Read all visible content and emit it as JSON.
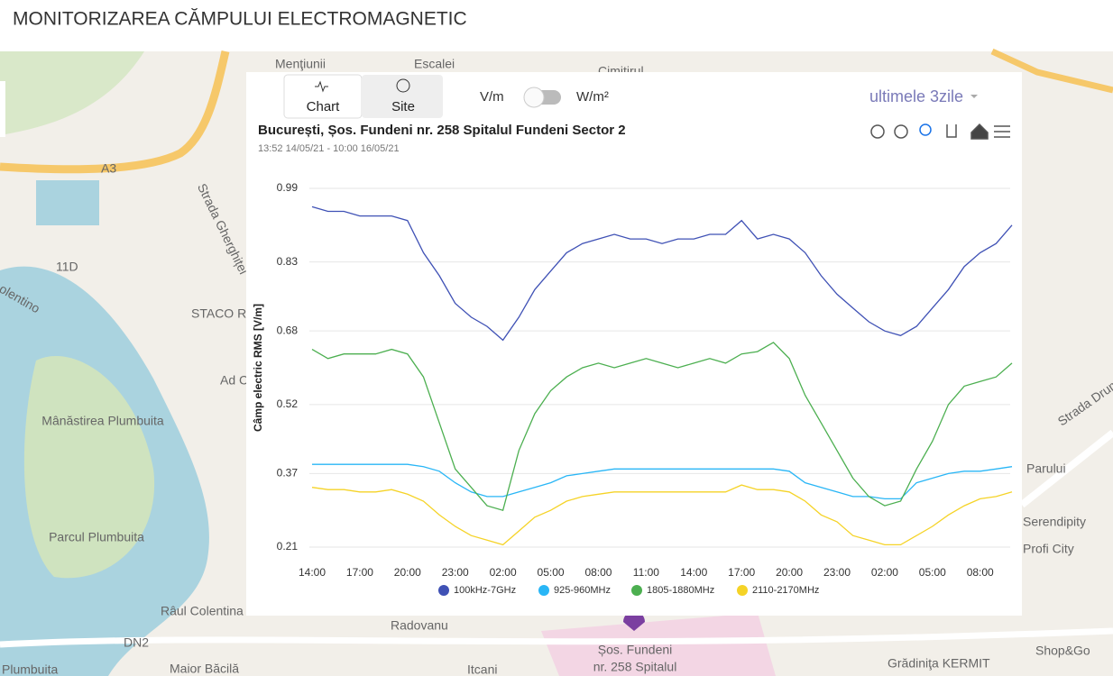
{
  "header": {
    "title": "MONITORIZAREA CĂMPULUI ELECTROMAGNETIC"
  },
  "tabs": [
    "Chart",
    "Site"
  ],
  "units": [
    "V/m",
    "W/m²"
  ],
  "period": "ultimele 3zile",
  "map_labels": [
    "Menţiunii",
    "Escalei",
    "Cimitirul",
    "Strada Gherghiței",
    "A3",
    "11D",
    "olentino",
    "STACO R",
    "Ad C",
    "Mânăstirea Plumbuita",
    "Parcul Plumbuita",
    "Râul Colentina",
    "DN2",
    "Plumbuita",
    "Maior Băcilă",
    "Radovanu",
    "Itcani",
    "Șos. Fundeni",
    "nr. 258 Spitalul",
    "Grădiniţa KERMIT",
    "Shop&Go",
    "Serendipity",
    "Profi City",
    "Parului",
    "Strada Drum"
  ],
  "chart_data": {
    "type": "line",
    "title": "București, Șos. Fundeni nr. 258 Spitalul Fundeni Sector 2",
    "subtitle": "13:52 14/05/21 - 10:00 16/05/21",
    "y_label": "Câmp electric RMS [V/m]",
    "categories": [
      "14:00",
      null,
      null,
      "17:00",
      null,
      null,
      "20:00",
      null,
      null,
      "23:00",
      null,
      null,
      "02:00",
      null,
      null,
      "05:00",
      null,
      null,
      "08:00",
      null,
      null,
      "11:00",
      null,
      null,
      "14:00",
      null,
      null,
      "17:00",
      null,
      null,
      "20:00",
      null,
      null,
      "23:00",
      null,
      null,
      "02:00",
      null,
      null,
      "05:00",
      null,
      null,
      "08:00",
      null,
      null
    ],
    "ylim": [
      0.21,
      0.99
    ],
    "yticks": [
      0.21,
      0.37,
      0.52,
      0.68,
      0.83,
      0.99
    ],
    "grid": true,
    "series": [
      {
        "name": "100kHz-7GHz",
        "color": "#3f51b5",
        "values": [
          0.95,
          0.94,
          0.94,
          0.93,
          0.93,
          0.93,
          0.92,
          0.85,
          0.8,
          0.74,
          0.71,
          0.69,
          0.66,
          0.71,
          0.77,
          0.81,
          0.85,
          0.87,
          0.88,
          0.89,
          0.88,
          0.88,
          0.87,
          0.88,
          0.88,
          0.89,
          0.89,
          0.92,
          0.88,
          0.89,
          0.88,
          0.85,
          0.8,
          0.76,
          0.73,
          0.7,
          0.68,
          0.67,
          0.69,
          0.73,
          0.77,
          0.82,
          0.85,
          0.87,
          0.91
        ]
      },
      {
        "name": "925-960MHz",
        "color": "#29b6f6",
        "values": [
          0.39,
          0.39,
          0.39,
          0.39,
          0.39,
          0.39,
          0.39,
          0.385,
          0.375,
          0.35,
          0.33,
          0.32,
          0.32,
          0.33,
          0.34,
          0.35,
          0.365,
          0.37,
          0.375,
          0.38,
          0.38,
          0.38,
          0.38,
          0.38,
          0.38,
          0.38,
          0.38,
          0.38,
          0.38,
          0.38,
          0.375,
          0.35,
          0.34,
          0.33,
          0.32,
          0.32,
          0.315,
          0.315,
          0.35,
          0.36,
          0.37,
          0.375,
          0.375,
          0.38,
          0.385
        ]
      },
      {
        "name": "1805-1880MHz",
        "color": "#4caf50",
        "values": [
          0.64,
          0.62,
          0.63,
          0.63,
          0.63,
          0.64,
          0.63,
          0.58,
          0.48,
          0.38,
          0.34,
          0.3,
          0.29,
          0.42,
          0.5,
          0.55,
          0.58,
          0.6,
          0.61,
          0.6,
          0.61,
          0.62,
          0.61,
          0.6,
          0.61,
          0.62,
          0.61,
          0.63,
          0.635,
          0.655,
          0.62,
          0.54,
          0.48,
          0.42,
          0.36,
          0.32,
          0.3,
          0.31,
          0.38,
          0.44,
          0.52,
          0.56,
          0.57,
          0.58,
          0.61
        ]
      },
      {
        "name": "2110-2170MHz",
        "color": "#f5d327",
        "values": [
          0.34,
          0.335,
          0.335,
          0.33,
          0.33,
          0.335,
          0.325,
          0.31,
          0.28,
          0.255,
          0.235,
          0.225,
          0.215,
          0.245,
          0.275,
          0.29,
          0.31,
          0.32,
          0.325,
          0.33,
          0.33,
          0.33,
          0.33,
          0.33,
          0.33,
          0.33,
          0.33,
          0.345,
          0.335,
          0.335,
          0.33,
          0.31,
          0.28,
          0.265,
          0.235,
          0.225,
          0.215,
          0.215,
          0.235,
          0.255,
          0.28,
          0.3,
          0.315,
          0.32,
          0.33
        ]
      }
    ]
  }
}
